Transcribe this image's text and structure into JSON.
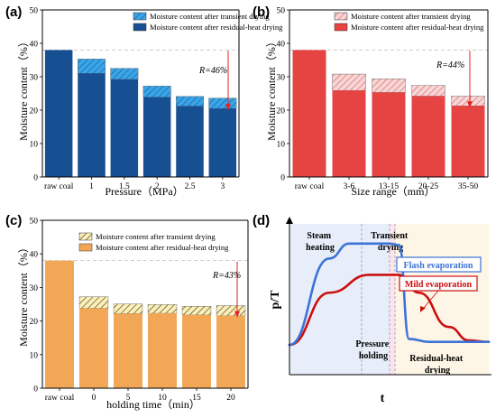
{
  "colors": {
    "a_bar": "#174f93",
    "a_top": "#3aa6e6",
    "a_top_hatch": "#1d5fb0",
    "b_bar": "#e64343",
    "b_top": "#f6d6d6",
    "b_top_hatch": "#e06a6a",
    "c_bar": "#f1a755",
    "c_top": "#fbf0bd",
    "c_top_hatch": "#5a4a10",
    "arrow": "#e62020",
    "flash_line": "#3c73d6",
    "mild_line": "#cc0f0f",
    "d_bg_left": "#e7eefa",
    "d_bg_mid": "#ffe3ea",
    "d_bg_right": "#fdf5e6"
  },
  "chart_data": [
    {
      "type": "bar",
      "panel": "(a)",
      "ylabel": "Moisture content（%）",
      "xlabel": "Pressure（MPa）",
      "ylim": [
        0,
        50
      ],
      "yticks": [
        0,
        10,
        20,
        30,
        40,
        50
      ],
      "categories": [
        "raw coal",
        "1",
        "1.5",
        "2",
        "2.5",
        "3"
      ],
      "series": [
        {
          "name": "Moisture content after transient drying",
          "values": [
            38,
            35.3,
            32.5,
            27.2,
            24.1,
            23.6
          ],
          "pattern": "hatch"
        },
        {
          "name": "Moisture content after residual-heat drying",
          "values": [
            38,
            31.0,
            29.2,
            23.9,
            21.2,
            20.5
          ],
          "pattern": "solid"
        }
      ],
      "reference_line": 38,
      "annotation": "R=46%",
      "legend": "top-right"
    },
    {
      "type": "bar",
      "panel": "(b)",
      "ylabel": "Moisture content（%）",
      "xlabel": "Size range（mm）",
      "ylim": [
        0,
        50
      ],
      "yticks": [
        0,
        10,
        20,
        30,
        40,
        50
      ],
      "categories": [
        "raw coal",
        "3-6",
        "13-15",
        "20-25",
        "35-50"
      ],
      "series": [
        {
          "name": "Moisture content after transient drying",
          "values": [
            38,
            30.8,
            29.4,
            27.4,
            24.2
          ],
          "pattern": "hatch"
        },
        {
          "name": "Moisture content after residual-heat drying",
          "values": [
            38,
            25.9,
            25.3,
            24.2,
            21.3
          ],
          "pattern": "solid"
        }
      ],
      "reference_line": 38,
      "annotation": "R=44%",
      "legend": "top-right"
    },
    {
      "type": "bar",
      "panel": "(c)",
      "ylabel": "Moisture content（%）",
      "xlabel": "holding time（min）",
      "ylim": [
        0,
        50
      ],
      "yticks": [
        0,
        10,
        20,
        30,
        40,
        50
      ],
      "categories": [
        "raw coal",
        "0",
        "5",
        "10",
        "15",
        "20"
      ],
      "series": [
        {
          "name": "Moisture content after transient drying",
          "values": [
            38,
            27.2,
            25.1,
            24.9,
            24.4,
            24.6
          ],
          "pattern": "hatch"
        },
        {
          "name": "Moisture content after residual-heat drying",
          "values": [
            38,
            23.8,
            22.2,
            22.3,
            21.8,
            21.6
          ],
          "pattern": "solid"
        }
      ],
      "reference_line": 38,
      "annotation": "R=43%",
      "legend": "top-right"
    },
    {
      "type": "line",
      "panel": "(d)",
      "xlabel": "t",
      "ylabel": "p/T",
      "phases": [
        "Steam heating",
        "Transient drying",
        "Pressure holding",
        "Residual-heat drying"
      ],
      "series": [
        {
          "name": "Flash evaporation",
          "x": [
            0,
            0.2,
            0.3,
            0.5,
            0.55,
            0.6,
            0.7,
            0.9,
            1.0
          ],
          "y": [
            0.2,
            0.78,
            0.88,
            0.88,
            0.87,
            0.24,
            0.22,
            0.22,
            0.22
          ]
        },
        {
          "name": "Mild evaporation",
          "x": [
            0,
            0.2,
            0.4,
            0.55,
            0.65,
            0.8,
            0.9,
            1.0
          ],
          "y": [
            0.2,
            0.55,
            0.67,
            0.67,
            0.55,
            0.32,
            0.23,
            0.22
          ]
        }
      ]
    }
  ]
}
